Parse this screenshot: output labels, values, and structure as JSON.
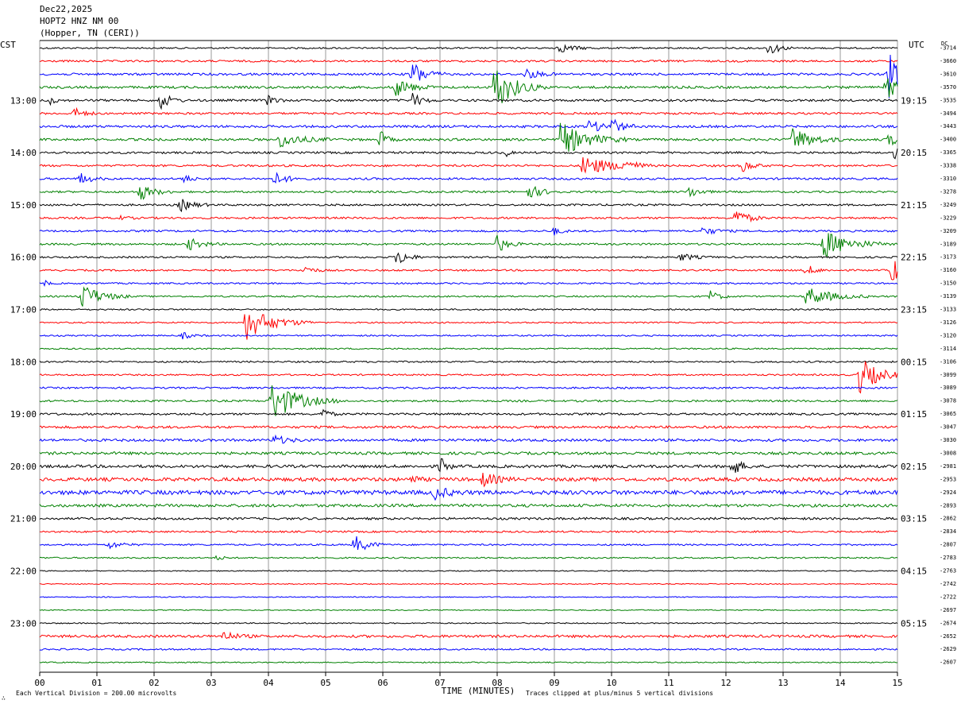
{
  "header": {
    "date": "Dec22,2025",
    "station": "HOPT2 HNZ NM 00",
    "location": "(Hopper, TN (CERI))"
  },
  "left_timezone": "CST",
  "right_timezone": "UTC",
  "dc_label": "DC",
  "footer": {
    "xlabel": "TIME (MINUTES)",
    "scale_note": "Each Vertical Division =  200.00 microvolts",
    "clip_note": "Traces clipped at plus/minus 5 vertical divisions",
    "corner_mark": "∴"
  },
  "colors": {
    "cycle": [
      "#000000",
      "#ff0000",
      "#0000ff",
      "#008000"
    ],
    "gridline": "#808080",
    "frame": "#000000"
  },
  "chart_data": {
    "type": "line",
    "title": "HOPT2 HNZ NM 00",
    "xlabel": "TIME (MINUTES)",
    "xlim": [
      0,
      15
    ],
    "x_ticks": [
      "00",
      "01",
      "02",
      "03",
      "04",
      "05",
      "06",
      "07",
      "08",
      "09",
      "10",
      "11",
      "12",
      "13",
      "14",
      "15"
    ],
    "trace_count": 48,
    "trace_minutes": 15,
    "hour_labels_left": [
      "13:00",
      "14:00",
      "15:00",
      "16:00",
      "17:00",
      "18:00",
      "19:00",
      "20:00",
      "21:00",
      "22:00",
      "23:00"
    ],
    "hour_labels_right": [
      "19:15",
      "20:15",
      "21:15",
      "22:15",
      "23:15",
      "00:15",
      "01:15",
      "02:15",
      "03:15",
      "04:15",
      "05:15"
    ],
    "dc_offsets": [
      "-3714",
      "-3660",
      "-3610",
      "-3570",
      "-3535",
      "-3494",
      "-3443",
      "-3400",
      "-3365",
      "-3338",
      "-3310",
      "-3278",
      "-3249",
      "-3229",
      "-3209",
      "-3189",
      "-3173",
      "-3160",
      "-3150",
      "-3139",
      "-3133",
      "-3126",
      "-3120",
      "-3114",
      "-3106",
      "-3099",
      "-3089",
      "-3078",
      "-3065",
      "-3047",
      "-3030",
      "-3008",
      "-2981",
      "-2953",
      "-2924",
      "-2893",
      "-2862",
      "-2834",
      "-2807",
      "-2783",
      "-2763",
      "-2742",
      "-2722",
      "-2697",
      "-2674",
      "-2652",
      "-2629",
      "-2607"
    ],
    "noise_levels": [
      1.0,
      1.2,
      1.4,
      1.5,
      1.4,
      1.3,
      1.5,
      1.5,
      1.3,
      1.3,
      1.3,
      1.2,
      1.2,
      1.2,
      1.2,
      1.2,
      1.1,
      1.1,
      1.0,
      1.0,
      0.9,
      0.9,
      0.9,
      0.9,
      1.0,
      1.0,
      1.1,
      1.2,
      1.3,
      1.5,
      1.6,
      1.7,
      1.8,
      2.2,
      2.6,
      1.8,
      1.4,
      1.1,
      1.0,
      0.9,
      0.6,
      0.6,
      0.6,
      0.6,
      0.7,
      1.6,
      1.0,
      0.7
    ],
    "events": [
      {
        "trace": 0,
        "minute": 9.05,
        "amp": 6,
        "dur": 0.25
      },
      {
        "trace": 0,
        "minute": 12.75,
        "amp": 10,
        "dur": 0.15
      },
      {
        "trace": 2,
        "minute": 6.5,
        "amp": 18,
        "dur": 0.2
      },
      {
        "trace": 2,
        "minute": 8.5,
        "amp": 7,
        "dur": 0.2
      },
      {
        "trace": 2,
        "minute": 14.85,
        "amp": 30,
        "dur": 0.3
      },
      {
        "trace": 3,
        "minute": 6.2,
        "amp": 12,
        "dur": 0.25
      },
      {
        "trace": 3,
        "minute": 7.95,
        "amp": 30,
        "dur": 0.3
      },
      {
        "trace": 3,
        "minute": 14.8,
        "amp": 15,
        "dur": 0.2
      },
      {
        "trace": 4,
        "minute": 0.15,
        "amp": 6,
        "dur": 0.1
      },
      {
        "trace": 4,
        "minute": 2.1,
        "amp": 12,
        "dur": 0.15
      },
      {
        "trace": 4,
        "minute": 4.0,
        "amp": 9,
        "dur": 0.1
      },
      {
        "trace": 4,
        "minute": 6.5,
        "amp": 10,
        "dur": 0.15
      },
      {
        "trace": 5,
        "minute": 0.6,
        "amp": 7,
        "dur": 0.15
      },
      {
        "trace": 6,
        "minute": 9.6,
        "amp": 7,
        "dur": 0.3
      },
      {
        "trace": 6,
        "minute": 10.0,
        "amp": 9,
        "dur": 0.15
      },
      {
        "trace": 7,
        "minute": 4.2,
        "amp": 10,
        "dur": 0.3
      },
      {
        "trace": 7,
        "minute": 5.95,
        "amp": 12,
        "dur": 0.1
      },
      {
        "trace": 7,
        "minute": 9.1,
        "amp": 22,
        "dur": 0.4
      },
      {
        "trace": 7,
        "minute": 13.15,
        "amp": 16,
        "dur": 0.3
      },
      {
        "trace": 7,
        "minute": 14.85,
        "amp": 8,
        "dur": 0.15
      },
      {
        "trace": 8,
        "minute": 8.15,
        "amp": 6,
        "dur": 0.05
      },
      {
        "trace": 8,
        "minute": 14.95,
        "amp": 7,
        "dur": 0.1
      },
      {
        "trace": 9,
        "minute": 9.5,
        "amp": 14,
        "dur": 0.4
      },
      {
        "trace": 9,
        "minute": 10.2,
        "amp": 9,
        "dur": 0.15
      },
      {
        "trace": 9,
        "minute": 12.3,
        "amp": 8,
        "dur": 0.15
      },
      {
        "trace": 10,
        "minute": 0.7,
        "amp": 8,
        "dur": 0.15
      },
      {
        "trace": 10,
        "minute": 2.5,
        "amp": 7,
        "dur": 0.1
      },
      {
        "trace": 10,
        "minute": 4.1,
        "amp": 8,
        "dur": 0.2
      },
      {
        "trace": 11,
        "minute": 1.75,
        "amp": 11,
        "dur": 0.2
      },
      {
        "trace": 11,
        "minute": 8.55,
        "amp": 9,
        "dur": 0.2
      },
      {
        "trace": 11,
        "minute": 11.35,
        "amp": 8,
        "dur": 0.15
      },
      {
        "trace": 12,
        "minute": 2.45,
        "amp": 8,
        "dur": 0.2
      },
      {
        "trace": 13,
        "minute": 1.3,
        "amp": 4,
        "dur": 0.15
      },
      {
        "trace": 13,
        "minute": 12.15,
        "amp": 12,
        "dur": 0.2
      },
      {
        "trace": 14,
        "minute": 9.0,
        "amp": 5,
        "dur": 0.1
      },
      {
        "trace": 14,
        "minute": 11.6,
        "amp": 5,
        "dur": 0.2
      },
      {
        "trace": 15,
        "minute": 2.6,
        "amp": 8,
        "dur": 0.2
      },
      {
        "trace": 15,
        "minute": 8.0,
        "amp": 12,
        "dur": 0.15
      },
      {
        "trace": 15,
        "minute": 13.7,
        "amp": 18,
        "dur": 0.4
      },
      {
        "trace": 16,
        "minute": 6.25,
        "amp": 12,
        "dur": 0.15
      },
      {
        "trace": 16,
        "minute": 11.2,
        "amp": 5,
        "dur": 0.2
      },
      {
        "trace": 17,
        "minute": 4.6,
        "amp": 6,
        "dur": 0.15
      },
      {
        "trace": 17,
        "minute": 13.4,
        "amp": 7,
        "dur": 0.15
      },
      {
        "trace": 17,
        "minute": 14.9,
        "amp": 18,
        "dur": 0.15
      },
      {
        "trace": 18,
        "minute": 0.1,
        "amp": 4,
        "dur": 0.05
      },
      {
        "trace": 19,
        "minute": 0.7,
        "amp": 18,
        "dur": 0.3
      },
      {
        "trace": 19,
        "minute": 11.7,
        "amp": 8,
        "dur": 0.15
      },
      {
        "trace": 19,
        "minute": 13.4,
        "amp": 12,
        "dur": 0.4
      },
      {
        "trace": 21,
        "minute": 3.6,
        "amp": 22,
        "dur": 0.4
      },
      {
        "trace": 22,
        "minute": 2.5,
        "amp": 4,
        "dur": 0.15
      },
      {
        "trace": 25,
        "minute": 14.3,
        "amp": 26,
        "dur": 0.3
      },
      {
        "trace": 27,
        "minute": 4.05,
        "amp": 26,
        "dur": 0.4
      },
      {
        "trace": 28,
        "minute": 4.95,
        "amp": 8,
        "dur": 0.1
      },
      {
        "trace": 30,
        "minute": 4.1,
        "amp": 6,
        "dur": 0.2
      },
      {
        "trace": 32,
        "minute": 7.0,
        "amp": 12,
        "dur": 0.1
      },
      {
        "trace": 32,
        "minute": 12.1,
        "amp": 12,
        "dur": 0.15
      },
      {
        "trace": 33,
        "minute": 6.5,
        "amp": 5,
        "dur": 0.1
      },
      {
        "trace": 33,
        "minute": 7.75,
        "amp": 9,
        "dur": 0.2
      },
      {
        "trace": 34,
        "minute": 6.9,
        "amp": 8,
        "dur": 0.2
      },
      {
        "trace": 38,
        "minute": 1.2,
        "amp": 5,
        "dur": 0.2
      },
      {
        "trace": 38,
        "minute": 5.5,
        "amp": 12,
        "dur": 0.2
      },
      {
        "trace": 39,
        "minute": 3.1,
        "amp": 3,
        "dur": 0.1
      },
      {
        "trace": 45,
        "minute": 3.2,
        "amp": 6,
        "dur": 0.2
      }
    ]
  }
}
